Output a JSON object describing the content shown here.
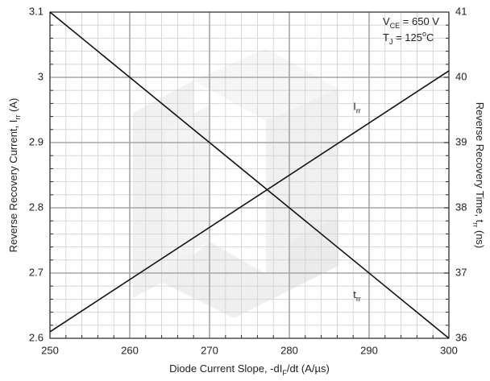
{
  "chart_data": {
    "type": "line",
    "xlabel": [
      {
        "text": "Diode Current Slope, -dI"
      },
      {
        "text": "F",
        "shift": "sub"
      },
      {
        "text": "/dt (A/µs)"
      }
    ],
    "ylabel": [
      {
        "text": "Reverse Recovery Current, I"
      },
      {
        "text": "rr",
        "shift": "sub"
      },
      {
        "text": " (A)"
      }
    ],
    "y2label": [
      {
        "text": "Reverse Recovery Time, t"
      },
      {
        "text": "rr",
        "shift": "sub"
      },
      {
        "text": " (ns)"
      }
    ],
    "annotations": [
      [
        {
          "text": "V"
        },
        {
          "text": "CE",
          "shift": "sub"
        },
        {
          "text": " = 650 V"
        }
      ],
      [
        {
          "text": "T"
        },
        {
          "text": "J",
          "shift": "sub"
        },
        {
          "text": " = 125"
        },
        {
          "text": "o",
          "shift": "super"
        },
        {
          "text": "C"
        }
      ]
    ],
    "x": [
      250,
      300
    ],
    "series": [
      {
        "name": [
          {
            "text": "I"
          },
          {
            "text": "rr",
            "shift": "sub"
          }
        ],
        "color": "#111111",
        "values": [
          2.61,
          3.01
        ]
      },
      {
        "name": [
          {
            "text": "t"
          },
          {
            "text": "rr",
            "shift": "sub"
          }
        ],
        "color": "#111111",
        "values": [
          41,
          36
        ],
        "axis": "y2"
      }
    ],
    "xlim": [
      250,
      300
    ],
    "xticks": [
      250,
      260,
      270,
      280,
      290,
      300
    ],
    "ylim": [
      2.6,
      3.1
    ],
    "yticks": [
      2.6,
      2.7,
      2.8,
      2.9,
      3,
      3.1
    ],
    "y2lim": [
      36,
      41
    ],
    "y2ticks": [
      36,
      37,
      38,
      39,
      40,
      41
    ],
    "grid": true,
    "minor_grid": {
      "x": 5,
      "y": 5
    }
  }
}
